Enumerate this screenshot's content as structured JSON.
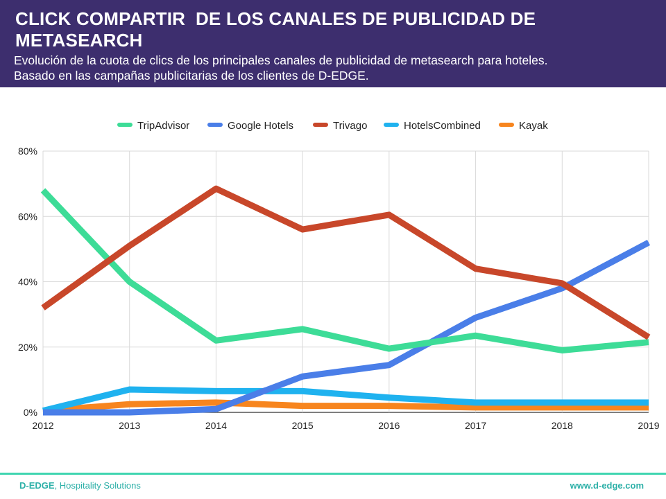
{
  "header": {
    "title": "CLICK COMPARTIR  DE LOS CANALES DE PUBLICIDAD DE METASEARCH",
    "subtitle_line1": "Evolución de la cuota de clics de los principales canales de publicidad de metasearch para hoteles.",
    "subtitle_line2": "Basado en las campañas publicitarias de los clientes de D-EDGE.",
    "background_color": "#3d2e6e"
  },
  "footer": {
    "brand": "D-EDGE",
    "tagline": ", Hospitality Solutions",
    "website": "www.d-edge.com",
    "accent_color": "#3fd5b0"
  },
  "chart_data": {
    "type": "line",
    "title": "",
    "xlabel": "",
    "ylabel": "",
    "x": [
      "2012",
      "2013",
      "2014",
      "2015",
      "2016",
      "2017",
      "2018",
      "2019"
    ],
    "y_ticks": [
      "0%",
      "20%",
      "40%",
      "60%",
      "80%"
    ],
    "ylim": [
      0,
      80
    ],
    "grid": true,
    "legend_position": "top",
    "series": [
      {
        "name": "TripAdvisor",
        "color": "#3ddc97",
        "values": [
          68,
          40,
          22,
          25.5,
          19.5,
          23.5,
          19,
          21.5
        ]
      },
      {
        "name": "Google Hotels",
        "color": "#4a7ee8",
        "values": [
          0,
          0,
          1,
          11,
          14.5,
          29,
          38,
          52
        ]
      },
      {
        "name": "Trivago",
        "color": "#c8472a",
        "values": [
          32,
          51,
          68.5,
          56,
          60.5,
          44,
          39.5,
          23
        ]
      },
      {
        "name": "HotelsCombined",
        "color": "#1fb2ef",
        "values": [
          0.5,
          7,
          6.5,
          6.5,
          4.5,
          3,
          3,
          3
        ]
      },
      {
        "name": "Kayak",
        "color": "#f7851e",
        "values": [
          0.5,
          2.5,
          3,
          2,
          2,
          1.5,
          1.5,
          1.5
        ]
      }
    ]
  }
}
